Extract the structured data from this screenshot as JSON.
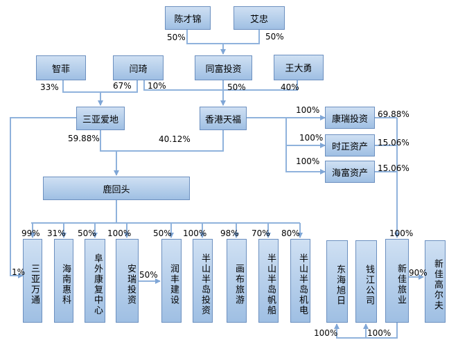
{
  "nodes": {
    "chen_caijin": "陈才锦",
    "ai_zhong": "艾忠",
    "zhi_fei": "智菲",
    "yan_qi": "闫琦",
    "tongfu": "同富投资",
    "wang_dayong": "王大勇",
    "sanya_aidi": "三亚爱地",
    "xianggang_tianfu": "香港天福",
    "kangrui": "康瑞投资",
    "shizheng": "时正资产",
    "haifu": "海富资产",
    "luhuitou": "鹿回头",
    "sanya_wantong": "三亚万通",
    "hainan_huike": "海南惠科",
    "fuwai": "阜外康复中心",
    "anrui": "安瑞投资",
    "runfeng": "润丰建设",
    "bsd_touzi": "半山半岛投资",
    "huabu": "画布旅游",
    "bsd_fanchuan": "半山半岛帆船",
    "bsd_jidian": "半山半岛机电",
    "donghai_xuri": "东海旭日",
    "qianjiang": "钱江公司",
    "xinjia_lvye": "新佳旅业",
    "xinjia_gaoerfu": "新佳高尔夫"
  },
  "pct": {
    "chen_to_tongfu": "50%",
    "ai_to_tongfu": "50%",
    "zhifei_to_sanya": "33%",
    "yanqi_to_sanya": "67%",
    "yanqi_to_tianfu": "10%",
    "tongfu_to_tianfu": "50%",
    "wang_to_tianfu": "40%",
    "sanya_to_luhuitou": "59.88%",
    "tianfu_to_luhuitou": "40.12%",
    "tianfu_to_kangrui": "100%",
    "tianfu_to_shizheng": "100%",
    "tianfu_to_haifu": "100%",
    "kangrui_to_xinjia": "69.88%",
    "shizheng_to_xinjia": "15.06%",
    "haifu_to_xinjia": "15.06%",
    "luhuitou_to_wantong": "99%",
    "luhuitou_to_huike": "31%",
    "luhuitou_to_fuwai": "50%",
    "luhuitou_to_anrui": "100%",
    "luhuitou_to_runfeng": "50%",
    "luhuitou_to_bsd_touzi": "100%",
    "luhuitou_to_huabu": "98%",
    "luhuitou_to_fanchuan": "70%",
    "luhuitou_to_jidian": "80%",
    "sanya_to_wantong": "1%",
    "anrui_to_runfeng": "50%",
    "xinjia_total": "100%",
    "xinjia_to_gaoerfu": "90%",
    "xinjia_to_donghai": "100%",
    "xinjia_to_qianjiang": "100%"
  }
}
